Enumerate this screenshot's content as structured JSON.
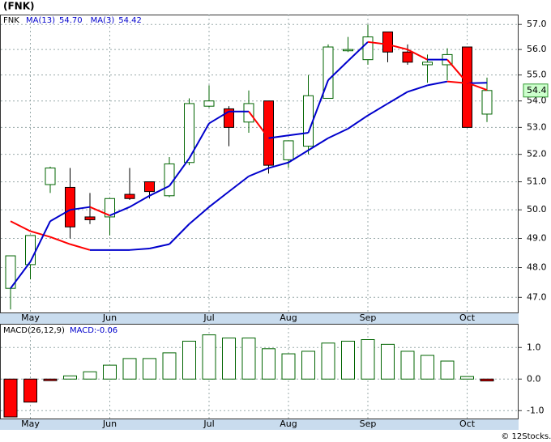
{
  "chart_data": [
    {
      "type": "candlestick",
      "title": "(FNK)",
      "ticker": "FNK",
      "categories": [
        null,
        "May",
        null,
        null,
        null,
        "Jun",
        null,
        null,
        null,
        null,
        "Jul",
        null,
        null,
        null,
        "Aug",
        null,
        null,
        null,
        "Sep",
        null,
        null,
        null,
        null,
        "Oct",
        null
      ],
      "open": [
        47.3,
        48.1,
        50.9,
        50.8,
        49.75,
        49.75,
        50.55,
        51.0,
        50.5,
        51.7,
        53.8,
        53.7,
        53.2,
        54.0,
        51.8,
        52.3,
        54.1,
        55.95,
        55.6,
        56.7,
        55.9,
        55.4,
        55.4,
        56.1,
        53.5
      ],
      "high": [
        48.4,
        49.1,
        51.55,
        51.5,
        50.6,
        50.4,
        51.5,
        51.0,
        51.9,
        54.1,
        54.6,
        53.8,
        54.4,
        54.0,
        52.5,
        55.0,
        56.2,
        56.5,
        57.0,
        56.7,
        56.2,
        55.8,
        56.05,
        56.1,
        54.9
      ],
      "low": [
        46.6,
        47.6,
        50.6,
        49.0,
        49.5,
        49.1,
        50.35,
        50.4,
        50.45,
        51.6,
        53.75,
        52.3,
        52.8,
        51.3,
        51.5,
        52.0,
        54.1,
        55.9,
        55.4,
        55.5,
        55.4,
        54.7,
        54.8,
        53.0,
        53.2
      ],
      "close": [
        48.4,
        49.1,
        51.5,
        49.4,
        49.65,
        50.4,
        50.4,
        50.65,
        51.65,
        53.9,
        54.0,
        53.0,
        53.9,
        51.6,
        52.5,
        54.2,
        56.1,
        56.0,
        56.5,
        55.9,
        55.5,
        55.5,
        55.8,
        53.0,
        54.4
      ],
      "up_color": "#006400",
      "down_color": "#ff0000",
      "series": [
        {
          "name": "MA(13)",
          "last_label": "54.70",
          "up_color": "#0000cc",
          "down_color": "#ff0000",
          "values": [
            49.6,
            49.25,
            49.05,
            48.8,
            48.6,
            48.6,
            48.6,
            48.65,
            48.8,
            49.5,
            50.1,
            50.65,
            51.2,
            51.5,
            51.7,
            52.15,
            52.6,
            52.95,
            53.45,
            53.9,
            54.35,
            54.6,
            54.75,
            54.68,
            54.7
          ]
        },
        {
          "name": "MA(3)",
          "last_label": "54.42",
          "up_color": "#0000cc",
          "down_color": "#ff0000",
          "values": [
            47.3,
            48.2,
            49.6,
            50.0,
            50.1,
            49.8,
            50.1,
            50.5,
            50.85,
            51.85,
            53.15,
            53.6,
            53.6,
            52.6,
            52.7,
            52.8,
            54.8,
            55.55,
            56.3,
            56.2,
            56.0,
            55.6,
            55.6,
            54.7,
            54.42
          ]
        }
      ],
      "last_price": 54.4,
      "last_price_color": "#ccffcc",
      "log_scale": true,
      "grid": true,
      "ylim": [
        46.5,
        57.4
      ],
      "yticks": [
        {
          "value": 47,
          "label": "47.0"
        },
        {
          "value": 48,
          "label": "48.0"
        },
        {
          "value": 49,
          "label": "49.0"
        },
        {
          "value": 50,
          "label": "50.0"
        },
        {
          "value": 51,
          "label": "51.0"
        },
        {
          "value": 52,
          "label": "52.0"
        },
        {
          "value": 53,
          "label": "53.0"
        },
        {
          "value": 54,
          "label": "54.0"
        },
        {
          "value": 55,
          "label": "55.0"
        },
        {
          "value": 56,
          "label": "56.0"
        },
        {
          "value": 57,
          "label": "57.0"
        }
      ]
    },
    {
      "type": "bar",
      "title": "MACD(26,12,9)",
      "value_label": "MACD:-0.06",
      "values": [
        -1.2,
        -0.73,
        -0.05,
        0.1,
        0.23,
        0.44,
        0.65,
        0.65,
        0.83,
        1.2,
        1.4,
        1.3,
        1.3,
        0.96,
        0.8,
        0.88,
        1.14,
        1.2,
        1.25,
        1.1,
        0.88,
        0.75,
        0.57,
        0.08,
        -0.06
      ],
      "up_color": "#006400",
      "down_color": "#ff0000",
      "grid": true,
      "ylim": [
        -1.25,
        1.75
      ],
      "yticks": [
        {
          "value": -1,
          "label": "-1.0"
        },
        {
          "value": 0,
          "label": "0.0"
        },
        {
          "value": 1,
          "label": "1.0"
        }
      ]
    }
  ],
  "copyright": "© 12Stocks.com"
}
